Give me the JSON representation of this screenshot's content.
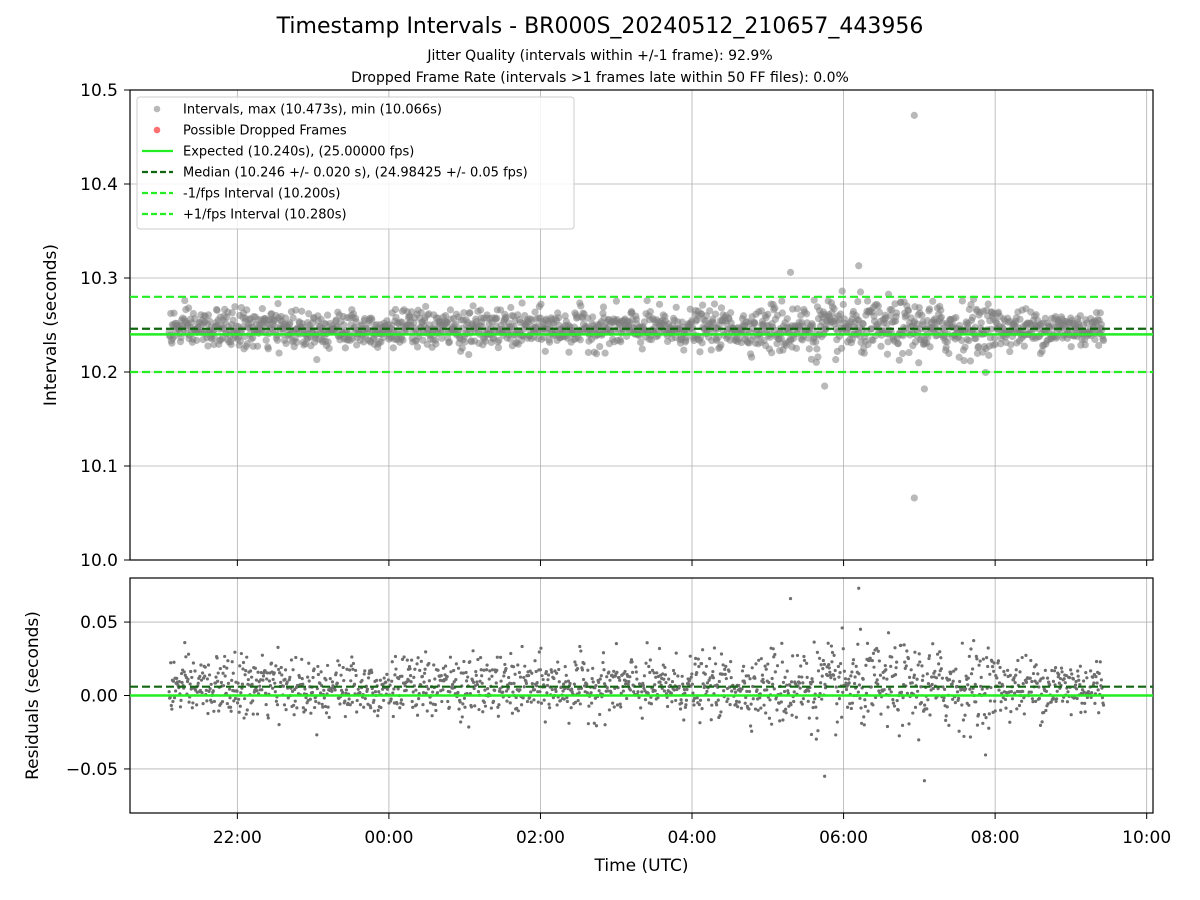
{
  "figure": {
    "title": "Timestamp Intervals - BR000S_20240512_210657_443956",
    "subtitle_1": "Jitter Quality (intervals within +/-1 frame): 92.9%",
    "subtitle_2": "Dropped Frame Rate (intervals >1 frames late within 50 FF files): 0.0%"
  },
  "colors": {
    "points": "#808080",
    "dropped": "#ff4d4d",
    "expected": "#22ee22",
    "median": "#116611",
    "fps_band": "#22ee22",
    "grid": "#b0b0b0"
  },
  "chart_data": [
    {
      "type": "scatter",
      "panel": "intervals",
      "ylabel": "Intervals (seconds)",
      "ylim": [
        10.0,
        10.5
      ],
      "yticks": [
        10.0,
        10.1,
        10.2,
        10.3,
        10.4,
        10.5
      ],
      "ytick_labels": [
        "10.0",
        "10.1",
        "10.2",
        "10.3",
        "10.4",
        "10.5"
      ],
      "xlim": [
        "20:35",
        "10:05"
      ],
      "xticks": [
        "22:00",
        "00:00",
        "02:00",
        "04:00",
        "06:00",
        "08:00",
        "10:00"
      ],
      "grid": true,
      "legend_position": "upper-left",
      "legend": [
        "Intervals, max (10.473s), min (10.066s)",
        "Possible Dropped Frames",
        "Expected (10.240s), (25.00000 fps)",
        "Median (10.246 +/- 0.020 s), (24.98425 +/- 0.05 fps)",
        "-1/fps Interval (10.200s)",
        "+1/fps Interval (10.280s)"
      ],
      "reference_lines": {
        "expected": 10.24,
        "median": 10.246,
        "minus_1fps": 10.2,
        "plus_1fps": 10.28
      },
      "data_summary": {
        "time_start": "21:06",
        "time_end": "09:26",
        "interval_s": 10.24,
        "max": 10.473,
        "max_time": "06:56",
        "min": 10.066,
        "min_time": "06:56",
        "typical_spread_s": 0.02,
        "higher_spread_start": "05:00",
        "higher_spread_end": "08:00",
        "dropped_frames": 0
      },
      "outliers": [
        {
          "x": "06:56",
          "y": 10.473
        },
        {
          "x": "06:56",
          "y": 10.066
        },
        {
          "x": "06:12",
          "y": 10.313
        },
        {
          "x": "05:18",
          "y": 10.306
        },
        {
          "x": "07:04",
          "y": 10.182
        },
        {
          "x": "05:45",
          "y": 10.185
        }
      ]
    },
    {
      "type": "scatter",
      "panel": "residuals",
      "ylabel": "Residuals (seconds)",
      "xlabel": "Time (UTC)",
      "ylim": [
        -0.08,
        0.08
      ],
      "yticks": [
        -0.05,
        0.0,
        0.05
      ],
      "ytick_labels": [
        "−0.05",
        "0.00",
        "0.05"
      ],
      "xlim": [
        "20:35",
        "10:05"
      ],
      "xticks": [
        "22:00",
        "00:00",
        "02:00",
        "04:00",
        "06:00",
        "08:00",
        "10:00"
      ],
      "xtick_labels": [
        "22:00",
        "00:00",
        "02:00",
        "04:00",
        "06:00",
        "08:00",
        "10:00"
      ],
      "grid": true,
      "reference_lines": {
        "zero": 0.0,
        "median_offset": 0.006
      },
      "data_summary": {
        "typical_spread_s": 0.02,
        "max": 0.074,
        "min": -0.058
      }
    }
  ]
}
